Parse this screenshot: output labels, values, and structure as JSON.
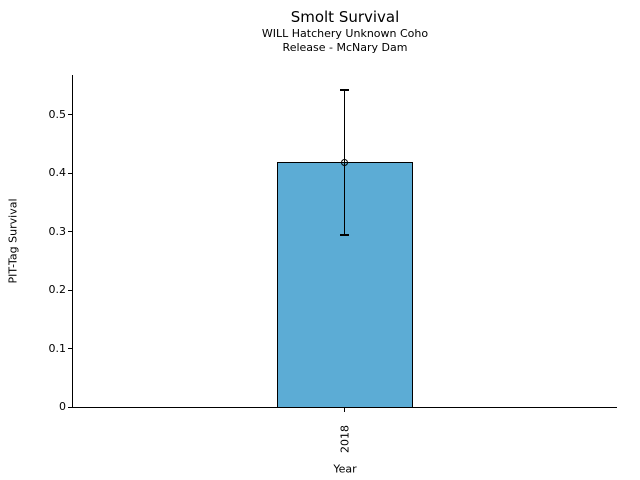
{
  "figure": {
    "title": "Smolt Survival",
    "subtitle_line1": "WILL Hatchery Unknown Coho",
    "subtitle_line2": "Release - McNary Dam"
  },
  "chart_data": {
    "type": "bar",
    "title": "Smolt Survival",
    "subtitles": [
      "WILL Hatchery Unknown Coho",
      "Release - McNary Dam"
    ],
    "xlabel": "Year",
    "ylabel": "PIT-Tag Survival",
    "categories": [
      "2018"
    ],
    "values": [
      0.419
    ],
    "error_low": [
      0.294
    ],
    "error_high": [
      0.542
    ],
    "yticks": [
      {
        "value": 0,
        "label": "0"
      },
      {
        "value": 0.1,
        "label": "0.1"
      },
      {
        "value": 0.2,
        "label": "0.2"
      },
      {
        "value": 0.3,
        "label": "0.3"
      },
      {
        "value": 0.4,
        "label": "0.4"
      },
      {
        "value": 0.5,
        "label": "0.5"
      }
    ],
    "ylim": [
      0,
      0.568
    ],
    "grid": false,
    "legend": null,
    "xtick_rotation_deg": 90,
    "bar_color": "#5CACD5",
    "edge_color": "#000000",
    "marker": "open-circle"
  }
}
